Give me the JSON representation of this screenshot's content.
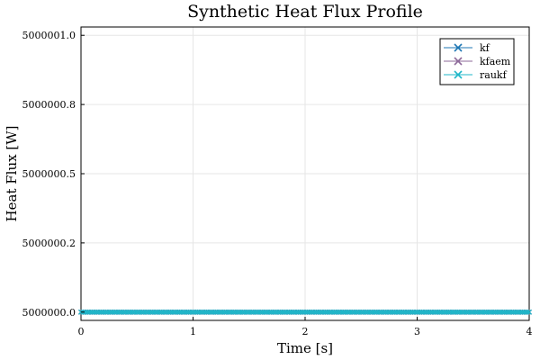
{
  "chart_data": {
    "type": "line",
    "title": "Synthetic Heat Flux Profile",
    "xlabel": "Time [s]",
    "ylabel": "Heat Flux [W]",
    "xlim": [
      0,
      4
    ],
    "ylim": [
      4999999.97,
      5000001.03
    ],
    "xticks": [
      0,
      1,
      2,
      3,
      4
    ],
    "xtick_labels": [
      "0",
      "1",
      "2",
      "3",
      "4"
    ],
    "yticks": [
      5000000.0,
      5000000.25,
      5000000.5,
      5000000.75,
      5000001.0
    ],
    "ytick_labels": [
      "5000000.0",
      "5000000.2",
      "5000000.5",
      "5000000.8",
      "5000001.0"
    ],
    "grid": true,
    "legend_position": "top-right",
    "marker": "x",
    "x_start": 0,
    "x_end": 4,
    "x_step": 0.02,
    "series": [
      {
        "name": "kf",
        "color": "#1f77b4",
        "constant_value": 5000000.0
      },
      {
        "name": "kfaem",
        "color": "#8e6a9a",
        "constant_value": 5000000.0
      },
      {
        "name": "raukf",
        "color": "#1fb7c9",
        "constant_value": 5000000.0
      }
    ]
  }
}
